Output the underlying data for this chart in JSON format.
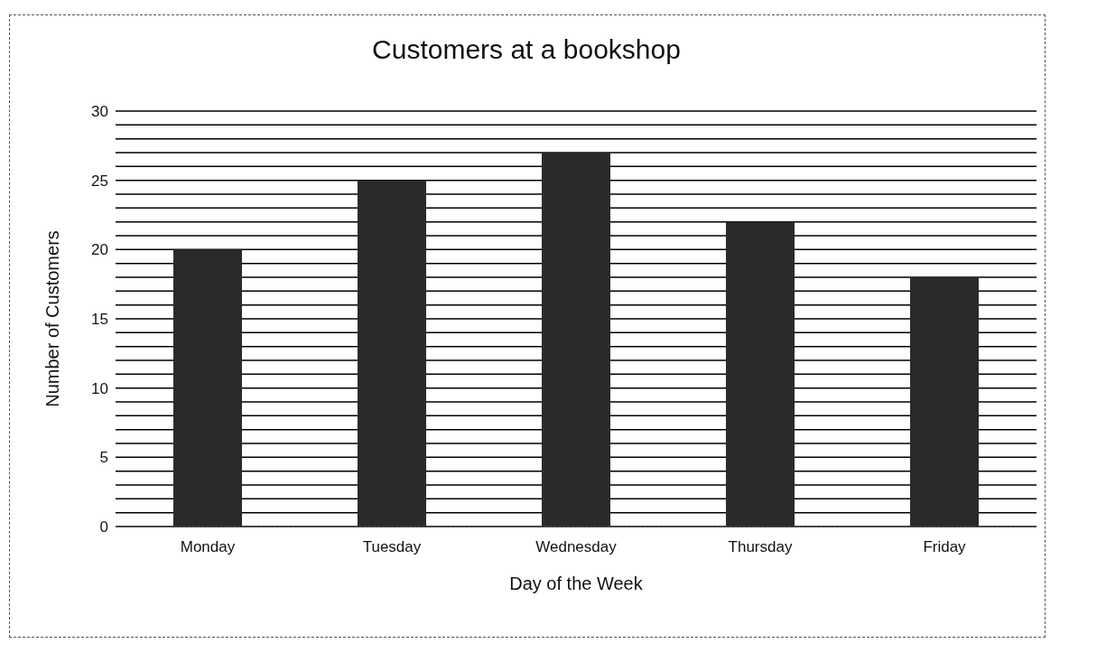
{
  "chart_data": {
    "type": "bar",
    "title": "Customers at a bookshop",
    "xlabel": "Day of the Week",
    "ylabel": "Number of Customers",
    "categories": [
      "Monday",
      "Tuesday",
      "Wednesday",
      "Thursday",
      "Friday"
    ],
    "values": [
      20,
      25,
      27,
      22,
      18
    ],
    "color": "#2a2a2a",
    "ylim": [
      0,
      30
    ],
    "yticks": [
      0,
      {
        "value": 1,
        "label": null
      },
      {
        "value": 2,
        "label": null
      },
      {
        "value": 3,
        "label": null
      },
      {
        "value": 4,
        "label": null
      },
      5,
      {
        "value": 6,
        "label": null
      },
      {
        "value": 7,
        "label": null
      },
      {
        "value": 8,
        "label": null
      },
      {
        "value": 9,
        "label": null
      },
      10,
      {
        "value": 11,
        "label": null
      },
      {
        "value": 12,
        "label": null
      },
      {
        "value": 13,
        "label": null
      },
      {
        "value": 14,
        "label": null
      },
      15,
      {
        "value": 16,
        "label": null
      },
      {
        "value": 17,
        "label": null
      },
      {
        "value": 18,
        "label": null
      },
      {
        "value": 19,
        "label": null
      },
      20,
      {
        "value": 21,
        "label": null
      },
      {
        "value": 22,
        "label": null
      },
      {
        "value": 23,
        "label": null
      },
      {
        "value": 24,
        "label": null
      },
      25,
      {
        "value": 26,
        "label": null
      },
      {
        "value": 27,
        "label": null
      },
      {
        "value": 28,
        "label": null
      },
      {
        "value": 29,
        "label": null
      },
      30
    ],
    "grid": "y"
  }
}
